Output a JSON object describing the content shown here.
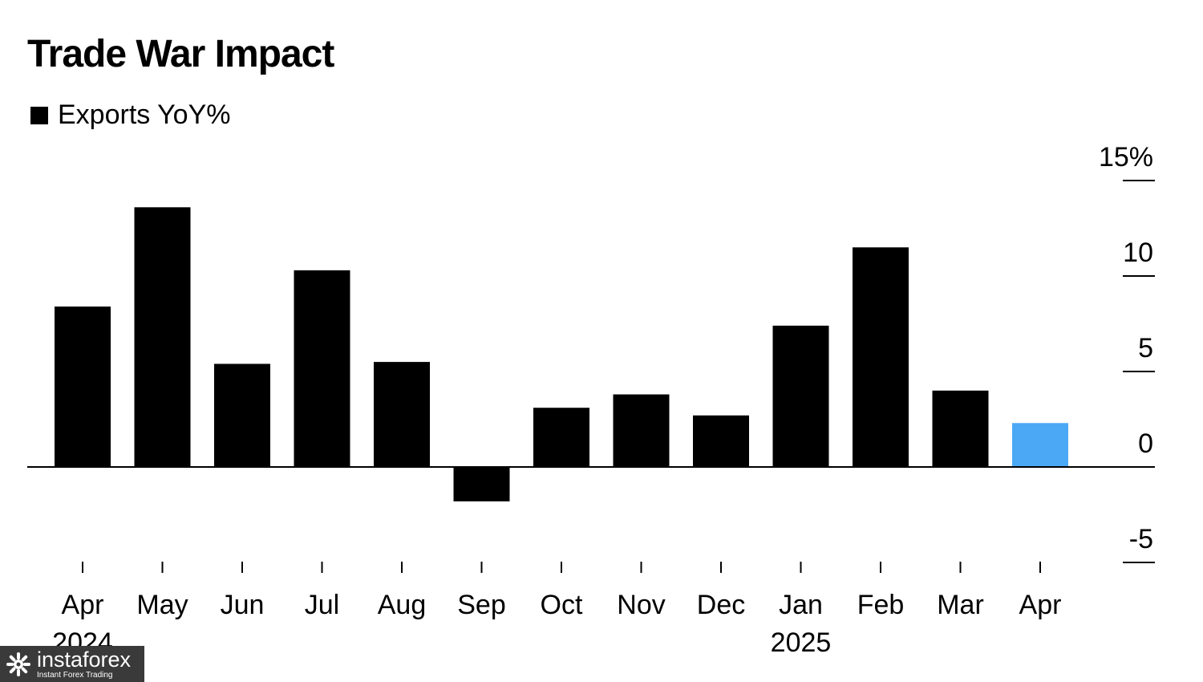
{
  "chart_data": {
    "type": "bar",
    "title": "Trade War Impact",
    "legend": {
      "label": "Exports YoY%",
      "color": "#000000",
      "placement": "top-left"
    },
    "categories": [
      "Apr",
      "May",
      "Jun",
      "Jul",
      "Aug",
      "Sep",
      "Oct",
      "Nov",
      "Dec",
      "Jan",
      "Feb",
      "Mar",
      "Apr"
    ],
    "year_labels": [
      {
        "index": 0,
        "label": "2024"
      },
      {
        "index": 9,
        "label": "2025"
      }
    ],
    "series": [
      {
        "values": [
          8.4,
          13.6,
          5.4,
          10.3,
          5.5,
          -1.8,
          3.1,
          3.8,
          2.7,
          7.4,
          11.5,
          4.0,
          2.3
        ]
      }
    ],
    "highlight_index": 12,
    "bar_color": "#000000",
    "highlight_color": "#4BA8F5",
    "y_ticks": [
      15,
      10,
      5,
      0,
      -5
    ],
    "y_tick_labels": [
      "15%",
      "10",
      "5",
      "0",
      "-5"
    ],
    "ylim": [
      -5,
      15
    ],
    "y_axis_position": "right",
    "grid": false
  },
  "watermark": {
    "brand": "instaforex",
    "tagline": "Instant Forex Trading",
    "icon": "instaforex-logo-icon"
  }
}
